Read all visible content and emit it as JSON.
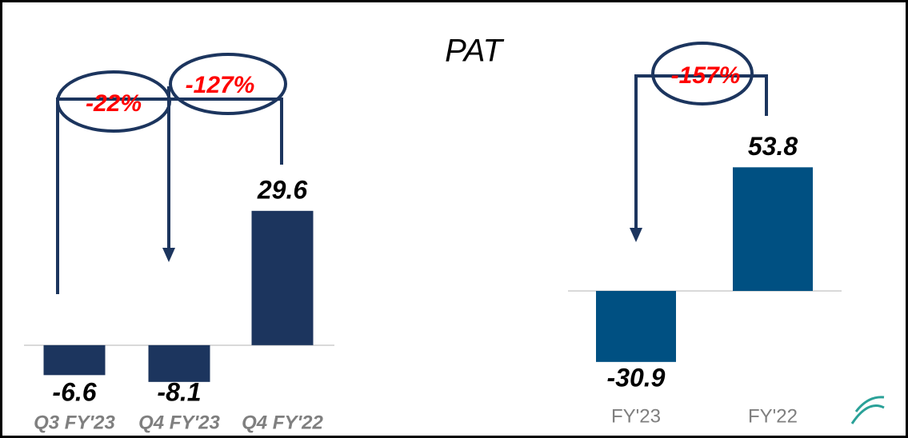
{
  "title": "PAT",
  "chart_data": [
    {
      "type": "bar",
      "categories": [
        "Q3 FY'23",
        "Q4 FY'23",
        "Q4 FY'22"
      ],
      "values": [
        -6.6,
        -8.1,
        29.6
      ],
      "color": "#1c355e",
      "ylim": [
        -15,
        50
      ],
      "annotations": [
        "-22%",
        "-127%"
      ]
    },
    {
      "type": "bar",
      "categories": [
        "FY'23",
        "FY'22"
      ],
      "values": [
        -30.9,
        53.8
      ],
      "color": "#005082",
      "ylim": [
        -40,
        80
      ],
      "annotations": [
        "-157%"
      ]
    }
  ]
}
